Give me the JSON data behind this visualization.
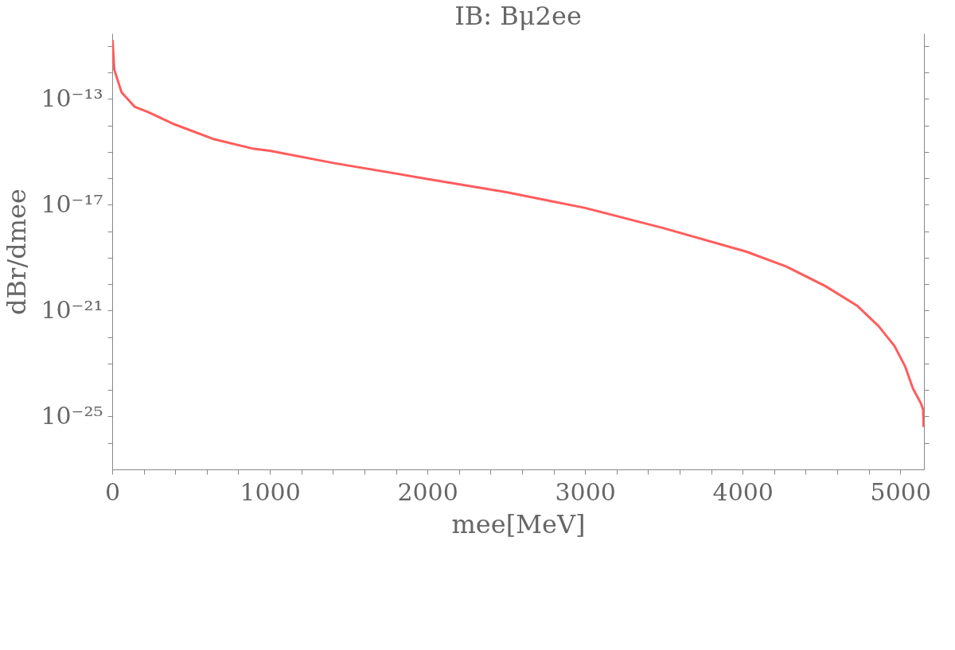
{
  "chart_data": {
    "type": "line",
    "title": "IB: Bμ2ee",
    "xlabel": "mee[MeV]",
    "ylabel": "dBr/dmee",
    "log": "y",
    "grid": false,
    "marker": "none",
    "line_style": "solid",
    "xlim": [
      0,
      5150
    ],
    "xticks": [
      0,
      {
        "value": 200,
        "label": null
      },
      {
        "value": 400,
        "label": null
      },
      {
        "value": 600,
        "label": null
      },
      {
        "value": 800,
        "label": null
      },
      1000,
      {
        "value": 1200,
        "label": null
      },
      {
        "value": 1400,
        "label": null
      },
      {
        "value": 1600,
        "label": null
      },
      {
        "value": 1800,
        "label": null
      },
      2000,
      {
        "value": 2200,
        "label": null
      },
      {
        "value": 2400,
        "label": null
      },
      {
        "value": 2600,
        "label": null
      },
      {
        "value": 2800,
        "label": null
      },
      3000,
      {
        "value": 3200,
        "label": null
      },
      {
        "value": 3400,
        "label": null
      },
      {
        "value": 3600,
        "label": null
      },
      {
        "value": 3800,
        "label": null
      },
      4000,
      {
        "value": 4200,
        "label": null
      },
      {
        "value": 4400,
        "label": null
      },
      {
        "value": 4600,
        "label": null
      },
      {
        "value": 4800,
        "label": null
      },
      5000
    ],
    "ylim": [
      1e-27,
      3e-11
    ],
    "yticks": [
      {
        "value": 1e-11,
        "label": null
      },
      {
        "value": 1e-12,
        "label": null
      },
      {
        "value": 1e-13,
        "label": "10⁻¹³"
      },
      {
        "value": 1e-14,
        "label": null
      },
      {
        "value": 1e-15,
        "label": null
      },
      {
        "value": 1e-16,
        "label": null
      },
      {
        "value": 1e-17,
        "label": "10⁻¹⁷"
      },
      {
        "value": 1e-18,
        "label": null
      },
      {
        "value": 1e-19,
        "label": null
      },
      {
        "value": 1e-20,
        "label": null
      },
      {
        "value": 1e-21,
        "label": "10⁻²¹"
      },
      {
        "value": 1e-22,
        "label": null
      },
      {
        "value": 1e-23,
        "label": null
      },
      {
        "value": 1e-24,
        "label": null
      },
      {
        "value": 1e-25,
        "label": "10⁻²⁵"
      },
      {
        "value": 1e-26,
        "label": null
      }
    ],
    "x": [
      2,
      13,
      59,
      144,
      228,
      395,
      647,
      899,
      1000,
      1403,
      2000,
      2500,
      3000,
      3500,
      4022,
      4275,
      4527,
      4728,
      4862,
      4963,
      5030,
      5080,
      5131,
      5145,
      5148
    ],
    "series": [
      {
        "color": "#ff5c5c",
        "values": [
          1.7e-11,
          1.3e-12,
          1.8e-13,
          5e-14,
          3.2e-14,
          1.1e-14,
          3e-15,
          1.3e-15,
          1.1e-15,
          3.8e-16,
          9.5e-17,
          3e-17,
          7.6e-18,
          1.3e-18,
          1.7e-19,
          4.7e-20,
          8.3e-21,
          1.5e-21,
          2.6e-22,
          4.6e-23,
          7.9e-24,
          1.15e-24,
          3.1e-25,
          1.8e-25,
          4e-26
        ]
      }
    ]
  }
}
